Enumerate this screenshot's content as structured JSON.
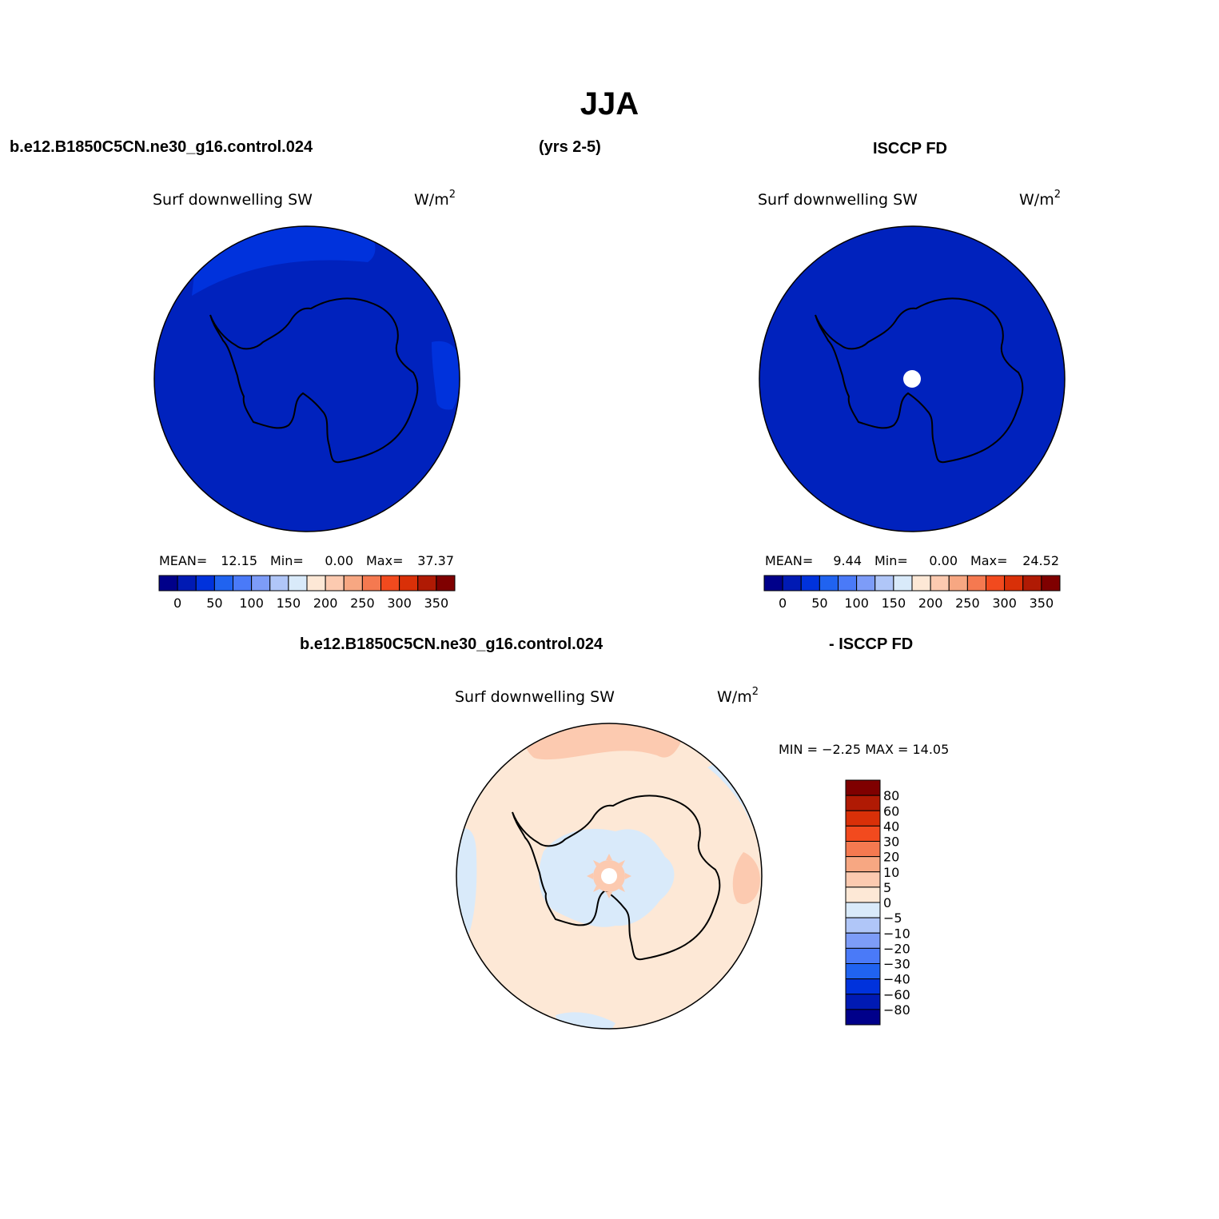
{
  "title": "JJA",
  "headers": {
    "case_name": "b.e12.B1850C5CN.ne30_g16.control.024",
    "years": "(yrs 2-5)",
    "obs_name": "ISCCP FD",
    "diff_case": "b.e12.B1850C5CN.ne30_g16.control.024",
    "diff_obs": "- ISCCP FD"
  },
  "panels": [
    {
      "variable": "Surf downwelling SW",
      "units": "W/m",
      "units_sup": "2",
      "mean_label": "MEAN=",
      "mean": "12.15",
      "min_label": "Min=",
      "min": "0.00",
      "max_label": "Max=",
      "max": "37.37"
    },
    {
      "variable": "Surf downwelling SW",
      "units": "W/m",
      "units_sup": "2",
      "mean_label": "MEAN=",
      "mean": "9.44",
      "min_label": "Min=",
      "min": "0.00",
      "max_label": "Max=",
      "max": "24.52"
    },
    {
      "variable": "Surf downwelling SW",
      "units": "W/m",
      "units_sup": "2",
      "minmax_text": "MIN =   −2.25 MAX =   14.05"
    }
  ],
  "colorbar_abs": {
    "colors": [
      "#00008a",
      "#001ab4",
      "#0032dc",
      "#2063f0",
      "#4a7af8",
      "#7d9cf8",
      "#b0c6f8",
      "#d9eafa",
      "#fde8d6",
      "#fccab0",
      "#f7a782",
      "#f57950",
      "#f24a1e",
      "#d93008",
      "#b01a04",
      "#7f0000"
    ],
    "labels": [
      "0",
      "50",
      "100",
      "150",
      "200",
      "250",
      "300",
      "350"
    ]
  },
  "colorbar_diff": {
    "colors": [
      "#00008a",
      "#001ab4",
      "#0032dc",
      "#2063f0",
      "#4a7af8",
      "#7d9cf8",
      "#b0c6f8",
      "#d9eafa",
      "#fde8d6",
      "#fccab0",
      "#f7a782",
      "#f57950",
      "#f24a1e",
      "#d93008",
      "#b01a04",
      "#7f0000"
    ],
    "labels": [
      "80",
      "60",
      "40",
      "30",
      "20",
      "10",
      "5",
      "0",
      "−5",
      "−10",
      "−20",
      "−30",
      "−40",
      "−60",
      "−80"
    ]
  },
  "map_colors": {
    "model_fill": "#0022bd",
    "model_patch": "#0032dc",
    "obs_fill": "#0022bd",
    "diff_fill": "#fde8d6",
    "diff_neg": "#d9eafa",
    "diff_pos": "#fccab0"
  }
}
